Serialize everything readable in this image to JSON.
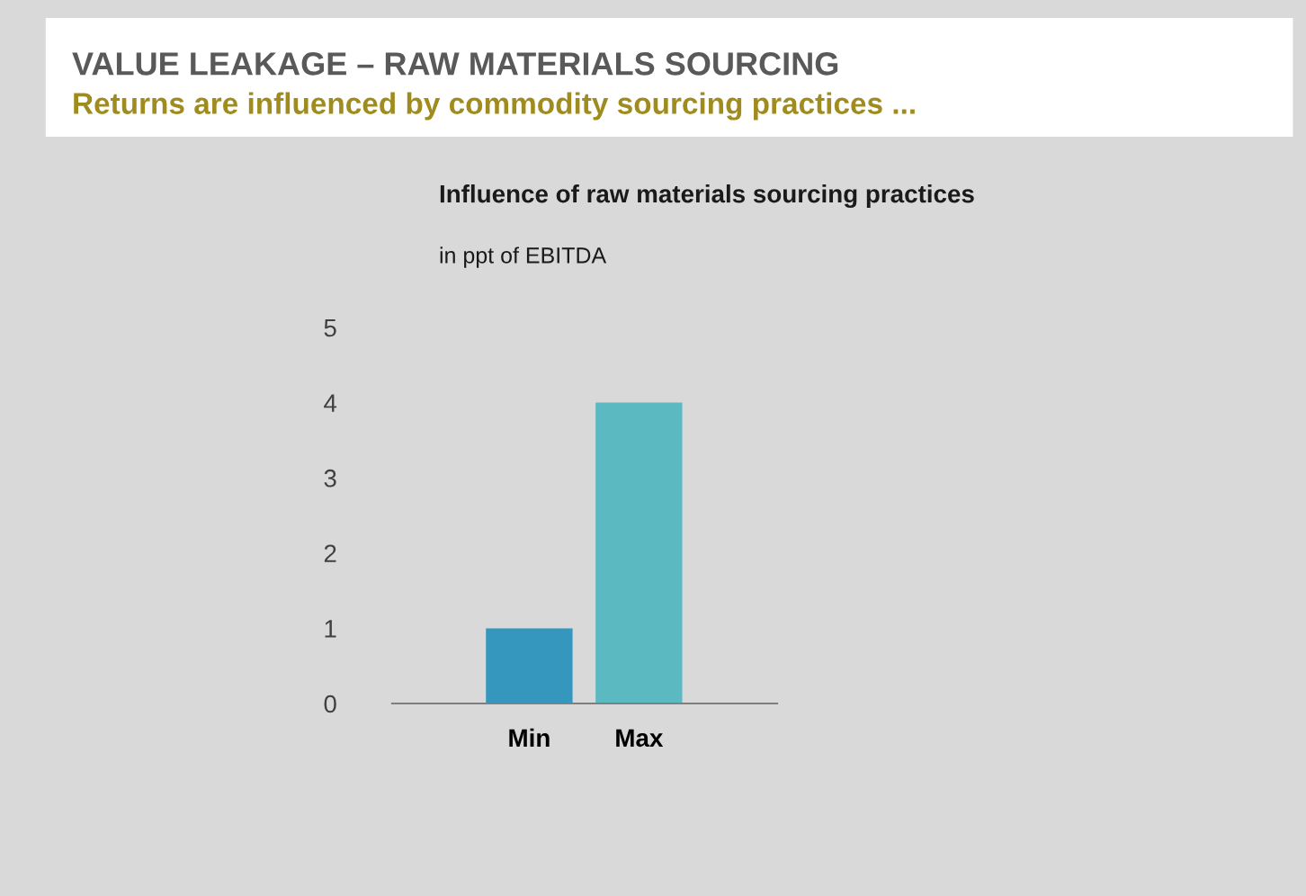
{
  "chart_data": {
    "type": "bar",
    "title": "VALUE LEAKAGE – RAW MATERIALS SOURCING",
    "subtitle": "Returns are influenced by commodity sourcing practices ...",
    "annotations": [
      "Influence of raw materials sourcing practices"
    ],
    "ylabel": "in ppt of EBITDA",
    "categories": [
      "Min",
      "Max"
    ],
    "values": [
      1,
      4
    ],
    "colors": [
      "#3597be",
      "#5bb9c2"
    ],
    "ylim": [
      0,
      5
    ],
    "yticks": [
      0,
      1,
      2,
      3,
      4,
      5
    ],
    "grid": false,
    "legend": false
  }
}
